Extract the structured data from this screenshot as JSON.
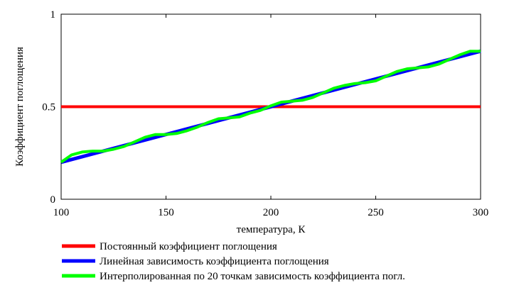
{
  "chart_data": {
    "type": "line",
    "xlabel": "температура, К",
    "ylabel": "Коэффициент поглощения",
    "xlim": [
      100,
      300
    ],
    "ylim": [
      0,
      1
    ],
    "xticks": [
      100,
      150,
      200,
      250,
      300
    ],
    "yticks": [
      0,
      0.5,
      1
    ],
    "ytick_labels": [
      "0",
      "0.5",
      "1"
    ],
    "grid": false,
    "legend_position": "bottom",
    "series": [
      {
        "name": "Постоянный коэффициент поглощения",
        "color": "#ff0000",
        "x": [
          100,
          300
        ],
        "y": [
          0.5,
          0.5
        ]
      },
      {
        "name": "Линейная зависимость коэффициента поглощения",
        "color": "#0000ff",
        "x": [
          100,
          300
        ],
        "y": [
          0.2,
          0.8
        ]
      },
      {
        "name": "Интерполированная по 20 точкам зависимость коэффициента погл.",
        "color": "#00ff00",
        "x": [
          100,
          105,
          110,
          115,
          120,
          125,
          130,
          135,
          140,
          145,
          150,
          155,
          160,
          165,
          170,
          175,
          180,
          185,
          190,
          195,
          200,
          205,
          210,
          215,
          220,
          225,
          230,
          235,
          240,
          245,
          250,
          255,
          260,
          265,
          270,
          275,
          280,
          285,
          290,
          295,
          300
        ],
        "y": [
          0.2,
          0.24,
          0.255,
          0.26,
          0.26,
          0.27,
          0.285,
          0.31,
          0.335,
          0.35,
          0.35,
          0.355,
          0.37,
          0.39,
          0.415,
          0.435,
          0.44,
          0.445,
          0.465,
          0.48,
          0.505,
          0.525,
          0.53,
          0.535,
          0.55,
          0.575,
          0.6,
          0.615,
          0.625,
          0.63,
          0.64,
          0.665,
          0.69,
          0.705,
          0.71,
          0.715,
          0.73,
          0.755,
          0.78,
          0.8,
          0.8
        ]
      }
    ]
  }
}
